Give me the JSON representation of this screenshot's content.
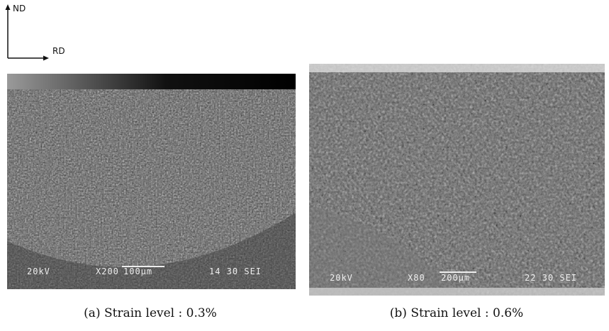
{
  "axes": {
    "vertical": "ND",
    "horizontal": "RD"
  },
  "panels": [
    {
      "caption": "(a) Strain level : 0.3%",
      "overlay": {
        "voltage": "20kV",
        "magnification": "X200",
        "scale": "100μm",
        "info": "14 30 SEI"
      }
    },
    {
      "caption": "(b) Strain level : 0.6%",
      "overlay": {
        "voltage": "20kV",
        "magnification": "X80",
        "scale": "200μm",
        "info": "22 30 SEI"
      }
    }
  ]
}
